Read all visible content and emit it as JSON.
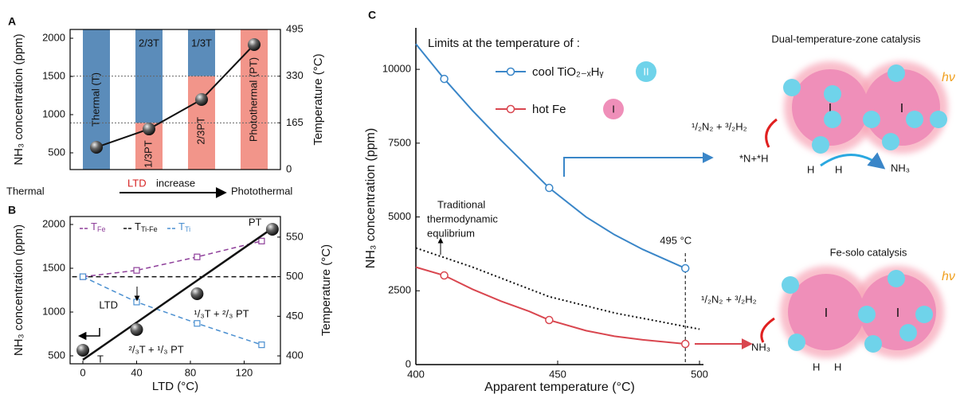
{
  "chart_data": [
    {
      "type": "band-line",
      "panel": "A",
      "categories_top": [
        "Thermal (T)",
        "2/3T",
        "1/3T",
        null
      ],
      "categories_bottom": [
        null,
        "1/3PT",
        "2/3PT",
        "Photothermal (PT)"
      ],
      "band_boundary": [
        0,
        165,
        330,
        495
      ],
      "colors": {
        "thermal": "#5b8cba",
        "photothermal": "#f2958a",
        "line": "#111"
      },
      "values": [
        573,
        812,
        1198,
        1917
      ],
      "ylabel": "NH₃ concentration (ppm)",
      "y2label": "Temperature (°C)",
      "ylim": [
        281,
        2115
      ],
      "yticks": [
        500,
        1000,
        1500,
        2000
      ],
      "y2lim": [
        0,
        495
      ],
      "y2ticks": [
        0,
        165,
        330,
        495
      ],
      "grid": true,
      "footer": {
        "left": "Thermal",
        "highlight": "LTD",
        "middle": "increase",
        "right": "Photothermal"
      }
    },
    {
      "type": "scatter-line",
      "panel": "B",
      "x": [
        0,
        40,
        85,
        141
      ],
      "values": [
        564,
        800,
        1209,
        1946
      ],
      "point_labels": [
        "T",
        "²/₃T + ¹/₃ PT",
        "¹/₃T + ²/₃ PT",
        "PT"
      ],
      "fit": {
        "x": [
          0,
          140
        ],
        "values": [
          455,
          1946
        ],
        "color": "#111"
      },
      "series": [
        {
          "name": "TFe",
          "color": "#8e3f9a",
          "axis": "y2",
          "x": [
            0,
            40,
            85,
            133
          ],
          "values": [
            500,
            508,
            525,
            545
          ]
        },
        {
          "name": "TTi-Fe",
          "color": "#111",
          "axis": "y2",
          "x": [
            -8,
            146
          ],
          "values": [
            500,
            500
          ]
        },
        {
          "name": "TTi",
          "color": "#4a8fd0",
          "axis": "y2",
          "x": [
            0,
            40,
            85,
            133
          ],
          "values": [
            500,
            468,
            441,
            414
          ]
        }
      ],
      "annotation": "LTD",
      "xlabel": "LTD (°C)",
      "ylabel": "NH₃ concentration (ppm)",
      "y2label": "Temperature (°C)",
      "xlim": [
        -9.5,
        147
      ],
      "xticks": [
        0,
        40,
        80,
        120
      ],
      "ylim": [
        409,
        2091
      ],
      "yticks": [
        500,
        1000,
        1500,
        2000
      ],
      "y2lim": [
        390,
        576
      ],
      "y2ticks": [
        400,
        450,
        500,
        550
      ]
    },
    {
      "type": "line",
      "panel": "C",
      "legend_title": "Limits at the temperature of :",
      "series": [
        {
          "name": "cool TiO₂₋ₓHᵧ",
          "color": "#3a86c8",
          "x": [
            400,
            410,
            420,
            430,
            440,
            447,
            460,
            470,
            480,
            495
          ],
          "values": [
            10860,
            9677,
            8600,
            7600,
            6650,
            5984,
            5000,
            4400,
            3900,
            3261
          ],
          "points": {
            "x": [
              410,
              447,
              495
            ],
            "values": [
              9677,
              5984,
              3261
            ]
          }
        },
        {
          "name": "hot Fe",
          "color": "#d9464f",
          "x": [
            400,
            410,
            420,
            430,
            440,
            447,
            460,
            470,
            480,
            495
          ],
          "values": [
            3300,
            3019,
            2550,
            2150,
            1800,
            1509,
            1150,
            960,
            840,
            700
          ],
          "points": {
            "x": [
              410,
              447,
              495
            ],
            "values": [
              3019,
              1509,
              700
            ]
          }
        }
      ],
      "equilibrium": {
        "x": [
          400,
          420,
          447,
          470,
          500
        ],
        "values": [
          3950,
          3300,
          2300,
          1750,
          1200
        ],
        "label": [
          "Traditional",
          "thermodynamic",
          "equlibrium"
        ]
      },
      "marker_line": {
        "x": 495,
        "label": "495 °C"
      },
      "xlabel": "Apparent temperature  (°C)",
      "ylabel": "NH₃ concentration (ppm)",
      "xlim": [
        400,
        501.4
      ],
      "xticks": [
        400,
        450,
        500
      ],
      "ylim": [
        0,
        11270
      ],
      "yticks": [
        0,
        2500,
        5000,
        7500,
        10000
      ]
    }
  ],
  "diagram": {
    "letters": [
      "A",
      "B",
      "C"
    ],
    "top": {
      "title": "Dual-temperature-zone catalysis",
      "reactants": "¹/₂N₂ + ³/₂H₂",
      "intermediate": "*N+*H",
      "h1": "H",
      "h2": "H",
      "product": "NH₃",
      "light": "hν"
    },
    "bottom": {
      "title": "Fe-solo catalysis",
      "reactants": "¹/₂N₂ + ³/₂H₂",
      "product": "NH₃",
      "h1": "H",
      "h2": "H",
      "light": "hν"
    },
    "site_fe": "I",
    "site_ti": "II"
  }
}
